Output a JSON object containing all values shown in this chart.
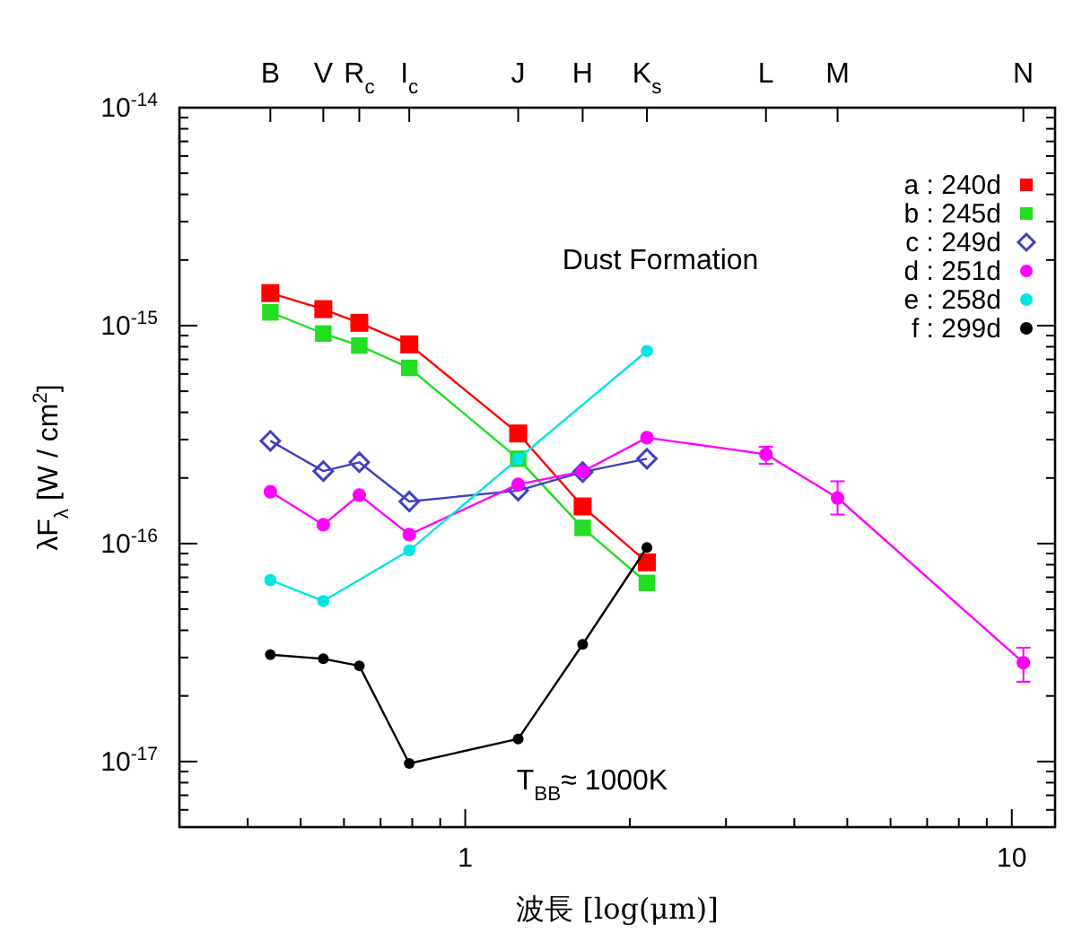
{
  "chart_data": {
    "type": "line",
    "xlabel": "波長 [log(μm)]",
    "ylabel": "λF$_{λ}$ [W / cm$^{2}$]",
    "annotations": [
      "Dust Formation",
      "T$_{BB}$≈ 1000K",
      {
        "text": "B",
        "x": 0.44
      },
      {
        "text": "V",
        "x": 0.55
      },
      {
        "text": "R$_{c}$",
        "x": 0.64
      },
      {
        "text": "I$_{c}$",
        "x": 0.79
      },
      {
        "text": "J",
        "x": 1.25
      },
      {
        "text": "H",
        "x": 1.64
      },
      {
        "text": "K$_{s}$",
        "x": 2.15
      },
      {
        "text": "L",
        "x": 3.55
      },
      {
        "text": "M",
        "x": 4.8
      },
      {
        "text": "N",
        "x": 10.5
      }
    ],
    "log": "xy",
    "legend": "top right",
    "xlim": [
      0.3,
      12
    ],
    "xticks": [
      1,
      10
    ],
    "ylim": [
      5e-18,
      1e-14
    ],
    "yticks": [
      {
        "value": 1e-17,
        "label": "10$^{-17}$"
      },
      {
        "value": 1e-16,
        "label": "10$^{-16}$"
      },
      {
        "value": 1e-15,
        "label": "10$^{-15}$"
      },
      {
        "value": 1e-14,
        "label": "10$^{-14}$"
      }
    ],
    "x": [
      0.44,
      0.55,
      0.64,
      0.79,
      1.25,
      1.64,
      2.15,
      3.55,
      4.8,
      10.5
    ],
    "series": [
      {
        "name": "a : 240d",
        "color": "#ff0000",
        "marker": "square",
        "values": [
          1.41e-15,
          1.19e-15,
          1.03e-15,
          8.2e-16,
          3.2e-16,
          1.48e-16,
          8.2e-17,
          null,
          null,
          null
        ]
      },
      {
        "name": "b : 245d",
        "color": "#22dd22",
        "marker": "square",
        "values": [
          1.15e-15,
          9.2e-16,
          8.1e-16,
          6.4e-16,
          2.45e-16,
          1.18e-16,
          6.6e-17,
          null,
          null,
          null
        ]
      },
      {
        "name": "c : 249d",
        "color": "#4040c0",
        "marker": "diamond",
        "values": [
          2.96e-16,
          2.15e-16,
          2.36e-16,
          1.56e-16,
          1.75e-16,
          2.13e-16,
          2.45e-16,
          null,
          null,
          null
        ]
      },
      {
        "name": "d : 251d",
        "color": "#ff00ff",
        "marker": "circle",
        "values": [
          1.73e-16,
          1.22e-16,
          1.67e-16,
          1.1e-16,
          1.87e-16,
          2.14e-16,
          3.06e-16,
          2.57e-16,
          1.62e-16,
          2.84e-17
        ],
        "errors": [
          null,
          null,
          null,
          null,
          null,
          null,
          null,
          [
            2.32e-16,
            2.78e-16
          ],
          [
            1.36e-16,
            1.93e-16
          ],
          [
            2.32e-17,
            3.33e-17
          ]
        ]
      },
      {
        "name": "e : 258d",
        "color": "#00e5e5",
        "marker": "circle",
        "values": [
          6.8e-17,
          5.45e-17,
          null,
          9.3e-17,
          2.45e-16,
          null,
          7.65e-16,
          null,
          null,
          null
        ]
      },
      {
        "name": "f : 299d",
        "color": "#000000",
        "marker": "circle",
        "values": [
          3.09e-17,
          2.96e-17,
          2.75e-17,
          9.8e-18,
          1.27e-17,
          3.45e-17,
          9.6e-17,
          null,
          null,
          null
        ]
      }
    ]
  }
}
